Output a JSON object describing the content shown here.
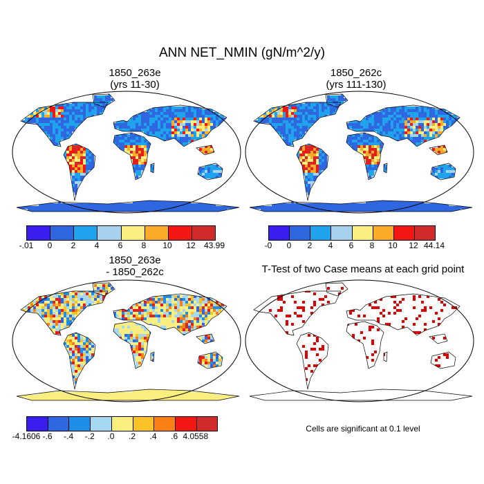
{
  "title": "ANN NET_NMIN (gN/m^2/y)",
  "panels": [
    {
      "id": "case1",
      "title_line1": "1850_263e",
      "title_line2": "(yrs 11-30)",
      "colorbar": {
        "labels": [
          "-.01",
          "0",
          "2",
          "4",
          "6",
          "8",
          "10",
          "12",
          "43.99"
        ],
        "colors": [
          "#3a1ef0",
          "#2f67e0",
          "#1fa3ec",
          "#a6d2ee",
          "#fbee80",
          "#fbab27",
          "#f21713",
          "#d02a2a"
        ]
      }
    },
    {
      "id": "case2",
      "title_line1": "1850_262c",
      "title_line2": "(yrs 111-130)",
      "colorbar": {
        "labels": [
          "-0",
          "0",
          "2",
          "4",
          "6",
          "8",
          "10",
          "12",
          "44.14"
        ],
        "colors": [
          "#3a1ef0",
          "#2f67e0",
          "#1fa3ec",
          "#a6d2ee",
          "#fbee80",
          "#fbab27",
          "#f21713",
          "#d02a2a"
        ]
      }
    },
    {
      "id": "diff",
      "title_line1": "1850_263e",
      "title_line2": "- 1850_262c",
      "colorbar": {
        "labels": [
          "-4.1606",
          "-.6",
          "-.4",
          "-.2",
          ".0",
          ".2",
          ".4",
          ".6",
          "4.0558"
        ],
        "colors": [
          "#3a1ef0",
          "#2f67e0",
          "#1f8ee8",
          "#a6d8f2",
          "#fbee80",
          "#fbc227",
          "#fb7f15",
          "#f21713",
          "#d02a2a"
        ]
      }
    },
    {
      "id": "ttest",
      "title_line1": "T-Test of two Case means at each grid point",
      "note": "Cells are significant at 0.1 level",
      "highlight_color": "#e00000"
    }
  ]
}
